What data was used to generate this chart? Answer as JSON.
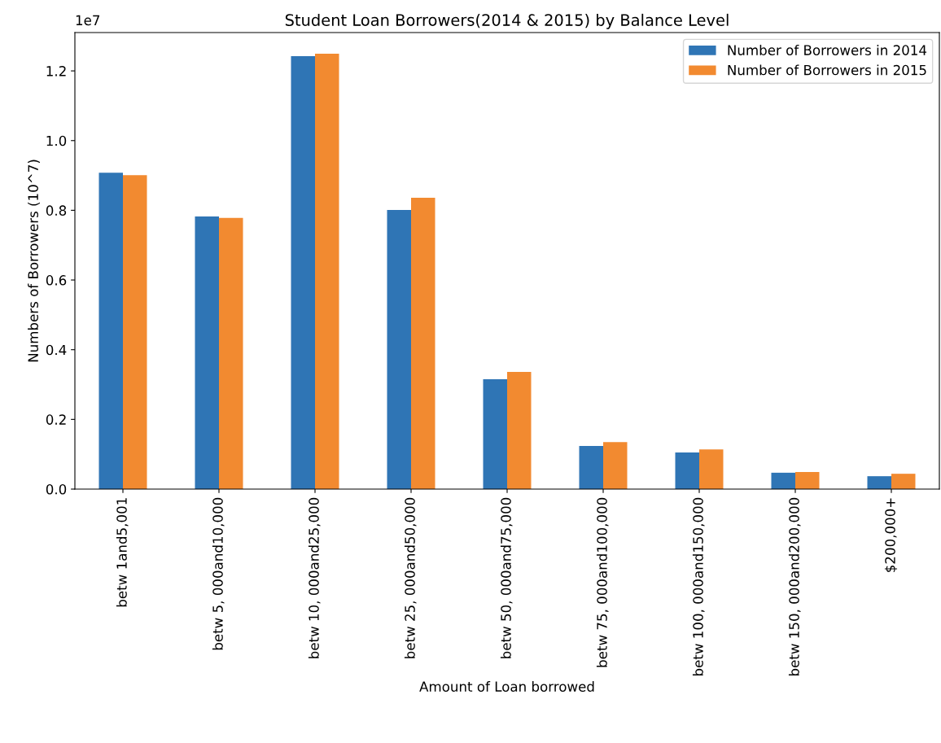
{
  "chart_data": {
    "type": "bar",
    "title": "Student Loan Borrowers(2014 & 2015) by Balance Level",
    "xlabel": "Amount of Loan borrowed",
    "ylabel": "Numbers of Borrowers (10^7)",
    "categories": [
      "betw 1and5,001",
      "betw 5, 000and10,000",
      "betw 10, 000and25,000",
      "betw 25, 000and50,000",
      "betw 50, 000and75,000",
      "betw 75, 000and100,000",
      "betw 100, 000and150,000",
      "betw 150, 000and200,000",
      "$200,000+"
    ],
    "series": [
      {
        "name": "Number of Borrowers in 2014",
        "color": "#2f75b5",
        "values": [
          0.908,
          0.782,
          1.242,
          0.801,
          0.315,
          0.124,
          0.105,
          0.047,
          0.037
        ]
      },
      {
        "name": "Number of Borrowers in 2015",
        "color": "#f28a30",
        "values": [
          0.901,
          0.778,
          1.249,
          0.836,
          0.336,
          0.135,
          0.114,
          0.049,
          0.044
        ]
      }
    ],
    "ylim": [
      0,
      1.31
    ],
    "yticks": [
      {
        "value": 0,
        "label": "0.0"
      },
      {
        "value": 0.2,
        "label": "0.2"
      },
      {
        "value": 0.4,
        "label": "0.4"
      },
      {
        "value": 0.6,
        "label": "0.6"
      },
      {
        "value": 0.8,
        "label": "0.8"
      },
      {
        "value": 1.0,
        "label": "1.0"
      },
      {
        "value": 1.2,
        "label": "1.2"
      }
    ],
    "annotations": [
      "1e7"
    ],
    "legend": "top right",
    "grid": false
  }
}
